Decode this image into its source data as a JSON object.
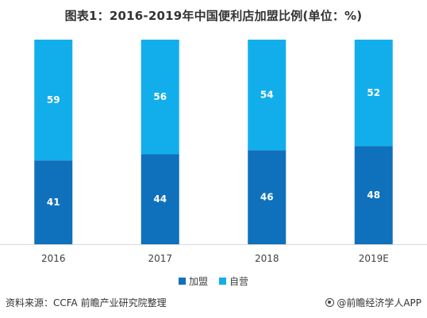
{
  "title": "图表1：2016-2019年中国便利店加盟比例(单位：%)",
  "chart_data": {
    "type": "bar",
    "stacked": true,
    "categories": [
      "2016",
      "2017",
      "2018",
      "2019E"
    ],
    "series": [
      {
        "name": "加盟",
        "values": [
          41,
          44,
          46,
          48
        ],
        "color": "#0f71bb"
      },
      {
        "name": "自营",
        "values": [
          59,
          56,
          54,
          52
        ],
        "color": "#12aeeb"
      }
    ],
    "ylim": [
      0,
      100
    ],
    "grid": false,
    "legend_position": "bottom"
  },
  "footer": {
    "source": "资料来源：CCFA 前瞻产业研究院整理",
    "brand": "@前瞻经济学人APP"
  }
}
